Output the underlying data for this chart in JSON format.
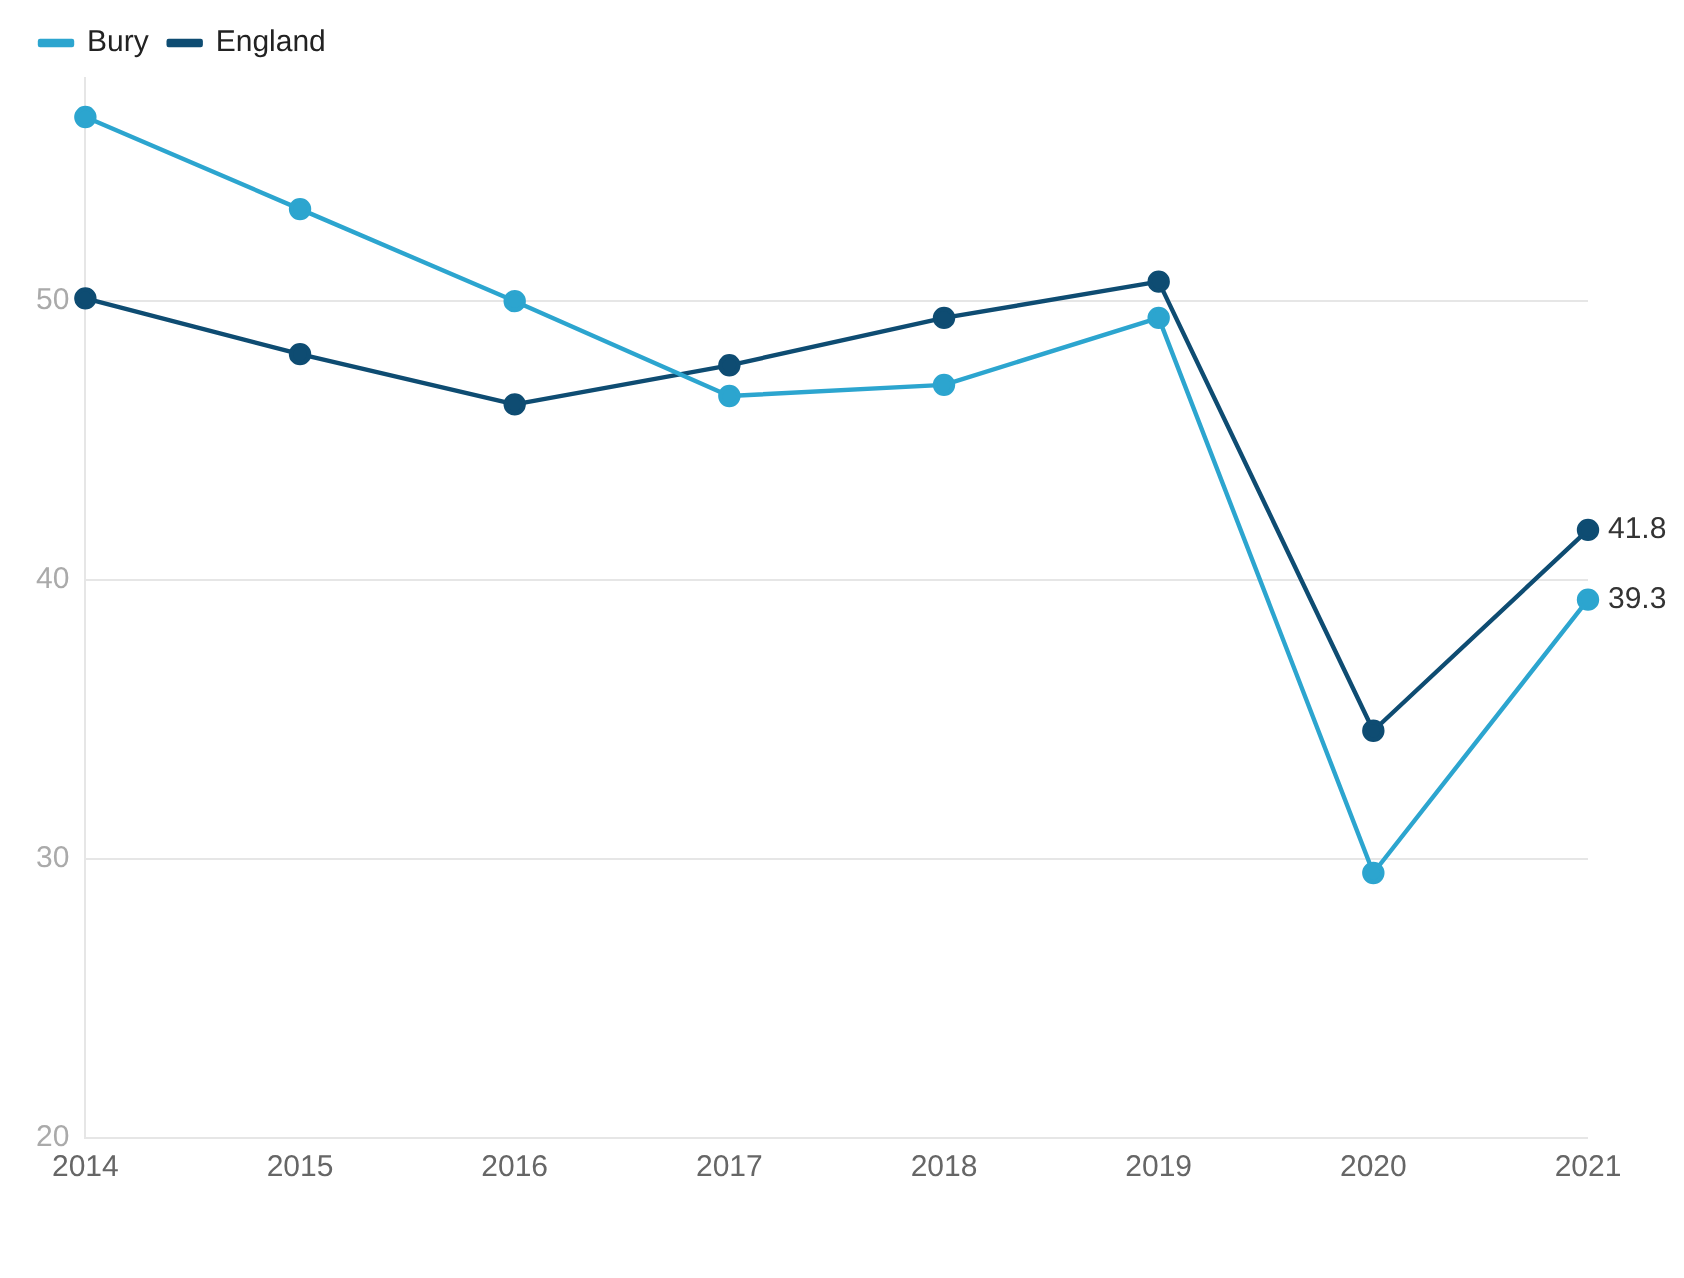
{
  "chart_data": {
    "type": "line",
    "categories": [
      "2014",
      "2015",
      "2016",
      "2017",
      "2018",
      "2019",
      "2020",
      "2021"
    ],
    "series": [
      {
        "name": "Bury",
        "color": "#2ca5cf",
        "values": [
          56.6,
          53.3,
          50.0,
          46.6,
          47.0,
          49.4,
          29.5,
          39.3
        ],
        "value_labels": [
          null,
          null,
          null,
          null,
          null,
          null,
          null,
          "39.3"
        ]
      },
      {
        "name": "England",
        "color": "#0e4c72",
        "values": [
          50.1,
          48.1,
          46.3,
          47.7,
          49.4,
          50.7,
          34.6,
          41.8
        ],
        "value_labels": [
          null,
          null,
          null,
          null,
          null,
          null,
          null,
          "41.8"
        ]
      }
    ],
    "ylim": [
      20,
      58
    ],
    "yticks": [
      20,
      30,
      40,
      50
    ],
    "grid": "y",
    "legend": "top left",
    "marker": "circle",
    "line_style": "solid"
  }
}
